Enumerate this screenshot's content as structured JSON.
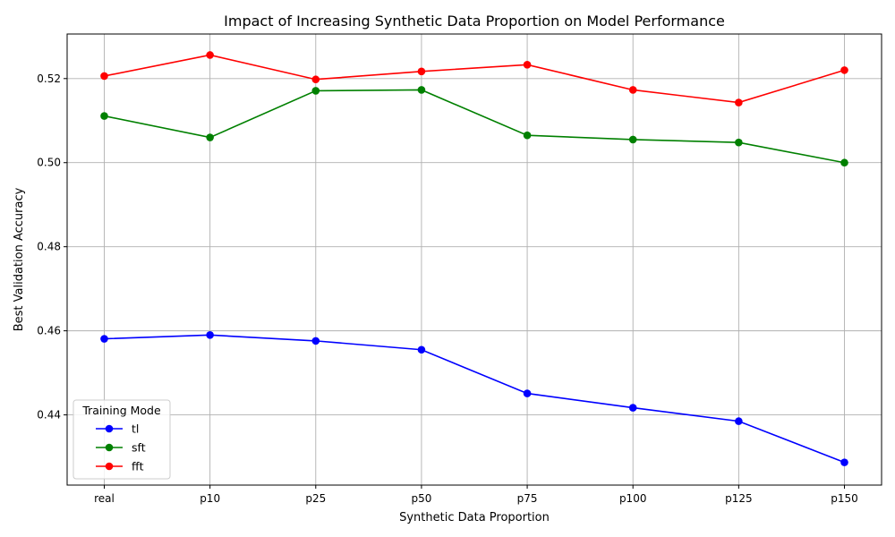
{
  "chart_data": {
    "type": "line",
    "title": "Impact of Increasing Synthetic Data Proportion on Model Performance",
    "xlabel": "Synthetic Data Proportion",
    "ylabel": "Best Validation Accuracy",
    "categories": [
      "real",
      "p10",
      "p25",
      "p50",
      "p75",
      "p100",
      "p125",
      "p150"
    ],
    "ylim": [
      0.4233,
      0.5306
    ],
    "yticks": [
      0.44,
      0.46,
      0.48,
      0.5,
      0.52
    ],
    "ytick_labels": [
      "0.44",
      "0.46",
      "0.48",
      "0.50",
      "0.52"
    ],
    "grid": true,
    "legend": {
      "title": "Training Mode",
      "placement": "lower-left"
    },
    "series": [
      {
        "name": "tl",
        "color": "#0000ff",
        "marker": "circle",
        "values": [
          0.4581,
          0.459,
          0.4576,
          0.4555,
          0.4451,
          0.4417,
          0.4385,
          0.4287
        ]
      },
      {
        "name": "sft",
        "color": "#008000",
        "marker": "circle",
        "values": [
          0.5111,
          0.506,
          0.5171,
          0.5173,
          0.5065,
          0.5055,
          0.5048,
          0.5
        ]
      },
      {
        "name": "fft",
        "color": "#ff0000",
        "marker": "circle",
        "values": [
          0.5206,
          0.5256,
          0.5198,
          0.5217,
          0.5233,
          0.5173,
          0.5143,
          0.522
        ]
      }
    ]
  }
}
